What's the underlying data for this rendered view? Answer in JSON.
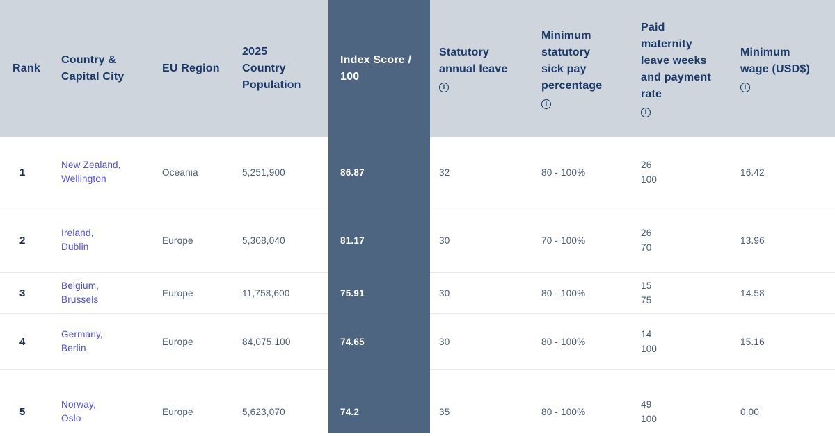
{
  "colors": {
    "header_bg": "#cfd5dd",
    "highlight_column_bg": "#4d6580",
    "header_text": "#1c3a69",
    "body_text": "#4b5b72",
    "rank_text": "#1e2b4c",
    "link": "#4f4ce8",
    "row_divider": "#e6e9ed",
    "highlight_text": "#ffffff"
  },
  "icons": {
    "info_glyph": "i"
  },
  "header": {
    "rank": "Rank",
    "country": "Country &\nCapital City",
    "region": "EU Region",
    "population": "2025\nCountry\nPopulation",
    "index": "Index Score /\n100",
    "leave": "Statutory\nannual leave",
    "sick": "Minimum\nstatutory\nsick pay\npercentage",
    "maternity": "Paid\nmaternity\nleave weeks\nand payment\nrate",
    "wage": "Minimum\nwage (USD$)"
  },
  "rows": [
    {
      "rank": "1",
      "country": "New Zealand,\nWellington",
      "region": "Oceania",
      "population": "5,251,900",
      "index": "86.87",
      "leave": "32",
      "sick": "80 - 100%",
      "maternity": "26\n100",
      "wage": "16.42"
    },
    {
      "rank": "2",
      "country": "Ireland,\nDublin",
      "region": "Europe",
      "population": "5,308,040",
      "index": "81.17",
      "leave": "30",
      "sick": "70 - 100%",
      "maternity": "26\n70",
      "wage": "13.96"
    },
    {
      "rank": "3",
      "country": "Belgium,\nBrussels",
      "region": "Europe",
      "population": "11,758,600",
      "index": "75.91",
      "leave": "30",
      "sick": "80 - 100%",
      "maternity": "15\n75",
      "wage": "14.58"
    },
    {
      "rank": "4",
      "country": "Germany,\nBerlin",
      "region": "Europe",
      "population": "84,075,100",
      "index": "74.65",
      "leave": "30",
      "sick": "80 - 100%",
      "maternity": "14\n100",
      "wage": "15.16"
    },
    {
      "rank": "5",
      "country": "Norway,\nOslo",
      "region": "Europe",
      "population": "5,623,070",
      "index": "74.2",
      "leave": "35",
      "sick": "80 - 100%",
      "maternity": "49\n100",
      "wage": "0.00"
    }
  ]
}
